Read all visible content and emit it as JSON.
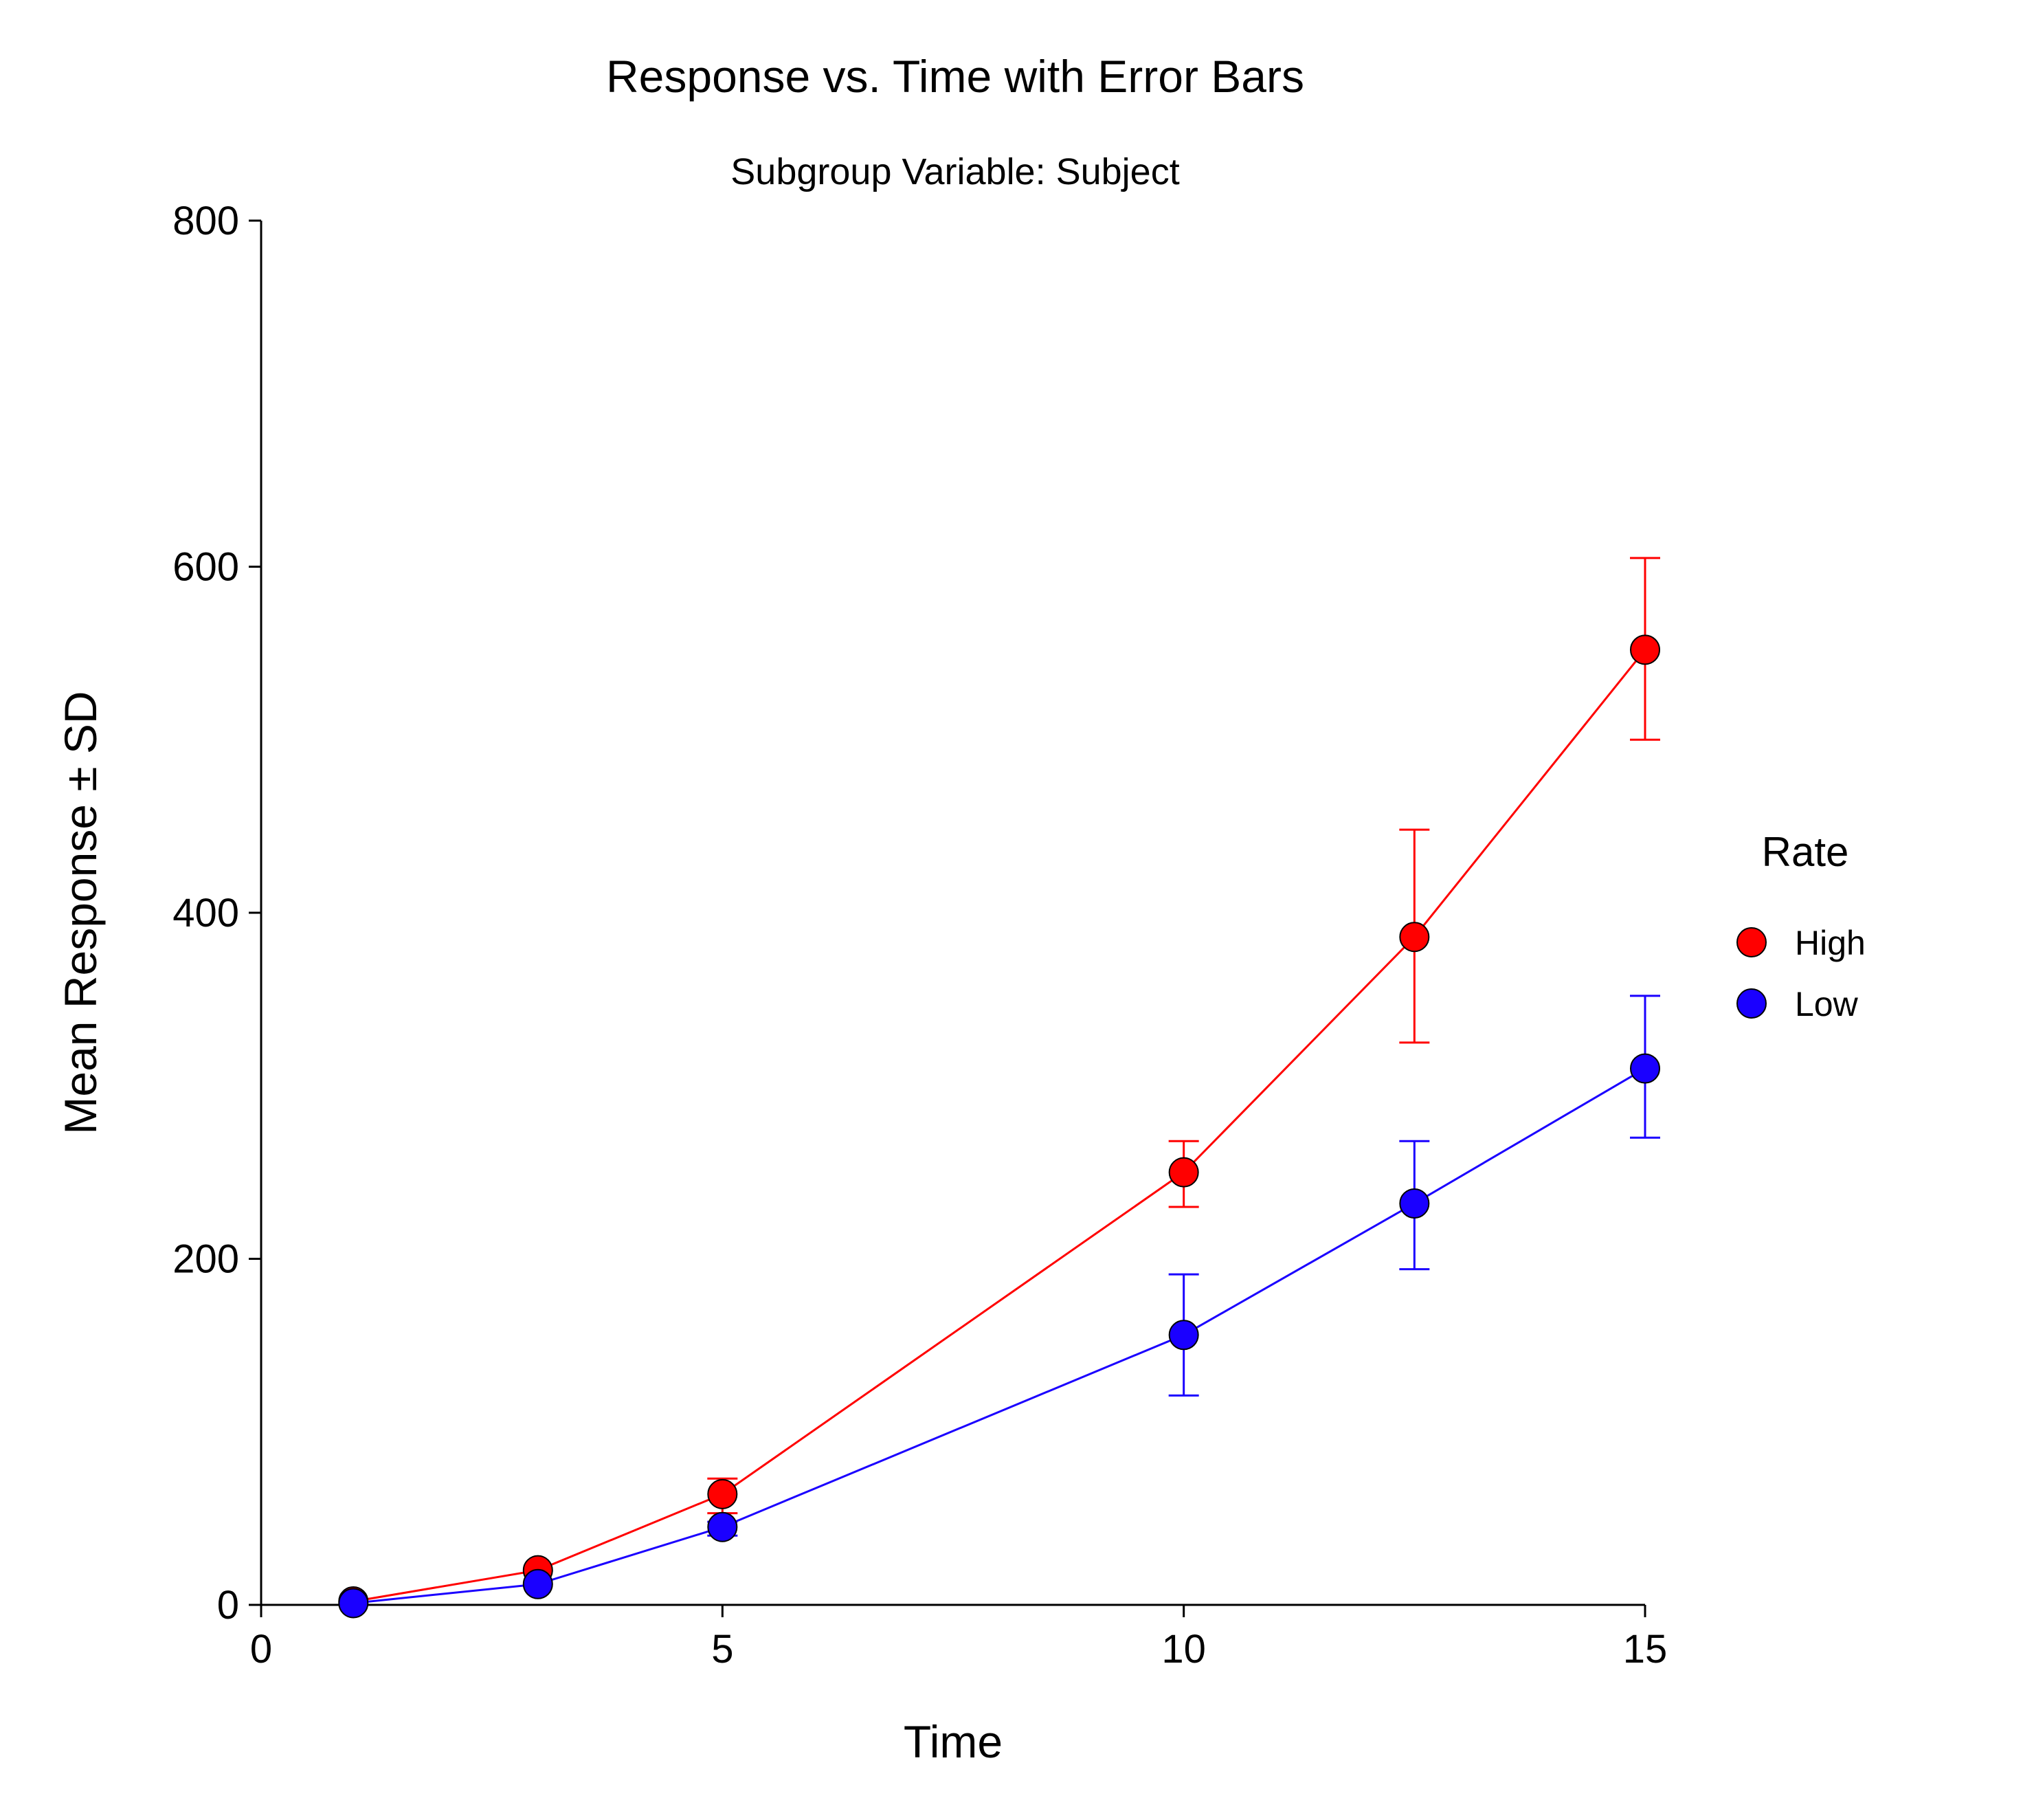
{
  "chart_data": {
    "type": "line",
    "title": "Response vs. Time with Error Bars",
    "subtitle": "Subgroup Variable: Subject",
    "xlabel": "Time",
    "ylabel": "Mean Response ± SD",
    "xlim": [
      0,
      15
    ],
    "ylim": [
      0,
      800
    ],
    "xticks": [
      "0",
      "5",
      "10",
      "15"
    ],
    "yticks": [
      "0",
      "200",
      "400",
      "600",
      "800"
    ],
    "grid": false,
    "legend": {
      "title": "Rate",
      "placement": "right"
    },
    "series": [
      {
        "name": "High",
        "color": "#ff0000",
        "x": [
          1,
          3,
          5,
          10,
          12.5,
          15
        ],
        "y": [
          2,
          20,
          64,
          250,
          386,
          552
        ],
        "err_low": [
          0,
          0,
          53,
          230,
          325,
          500
        ],
        "err_high": [
          0,
          0,
          73,
          268,
          448,
          605
        ]
      },
      {
        "name": "Low",
        "color": "#1a00ff",
        "x": [
          1,
          3,
          5,
          10,
          12.5,
          15
        ],
        "y": [
          1,
          12,
          45,
          156,
          232,
          310
        ],
        "err_low": [
          0,
          0,
          40,
          121,
          194,
          270
        ],
        "err_high": [
          0,
          0,
          48,
          191,
          268,
          352
        ]
      }
    ]
  }
}
